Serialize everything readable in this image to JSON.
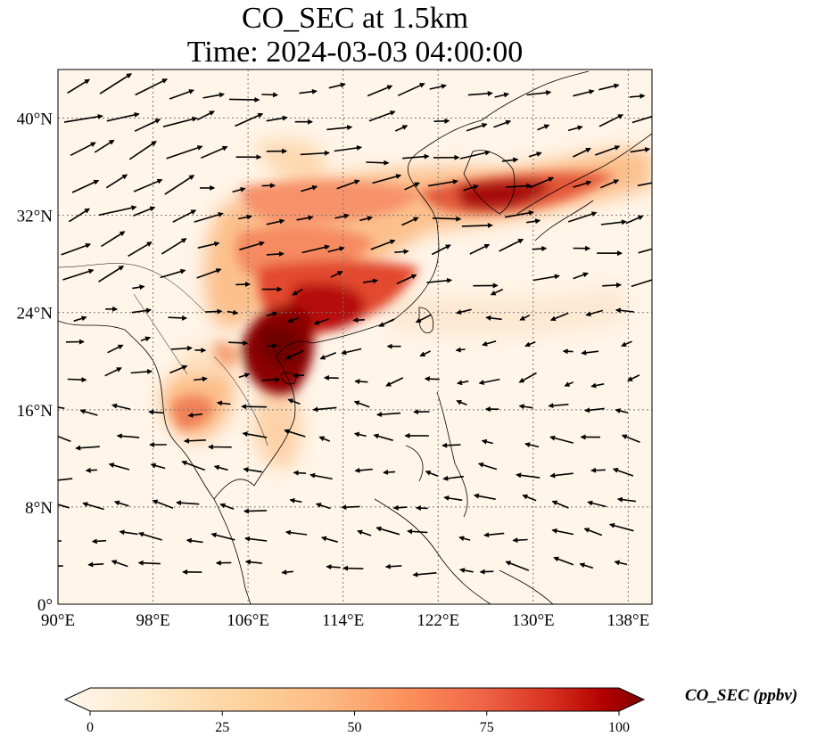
{
  "title": {
    "line1": "CO_SEC at 1.5km",
    "line2": "Time: 2024-03-03 04:00:00"
  },
  "map": {
    "projection": "PlateCarree",
    "lon_range": [
      90,
      140
    ],
    "lat_range": [
      0,
      44
    ],
    "field": "CO_SEC",
    "height": "1.5km",
    "gridlines": true,
    "wind_vectors": true,
    "x_ticks": [
      "90°E",
      "98°E",
      "106°E",
      "114°E",
      "122°E",
      "130°E",
      "138°E"
    ],
    "x_tick_values": [
      90,
      98,
      106,
      114,
      122,
      130,
      138
    ],
    "y_ticks": [
      "0°",
      "8°N",
      "16°N",
      "24°N",
      "32°N",
      "40°N"
    ],
    "y_tick_values": [
      0,
      8,
      16,
      24,
      32,
      40
    ],
    "colormap": "OrRd",
    "colors": {
      "low": "#fff7ec",
      "mid": "#fc8d59",
      "high": "#7f0000",
      "coast": "#000000",
      "grid": "#777777"
    }
  },
  "colorbar": {
    "label": "CO_SEC (ppbv)",
    "ticks": [
      "0",
      "25",
      "50",
      "75",
      "100"
    ],
    "tick_values": [
      0,
      25,
      50,
      75,
      100
    ],
    "range": [
      0,
      100
    ],
    "extend": "both"
  }
}
